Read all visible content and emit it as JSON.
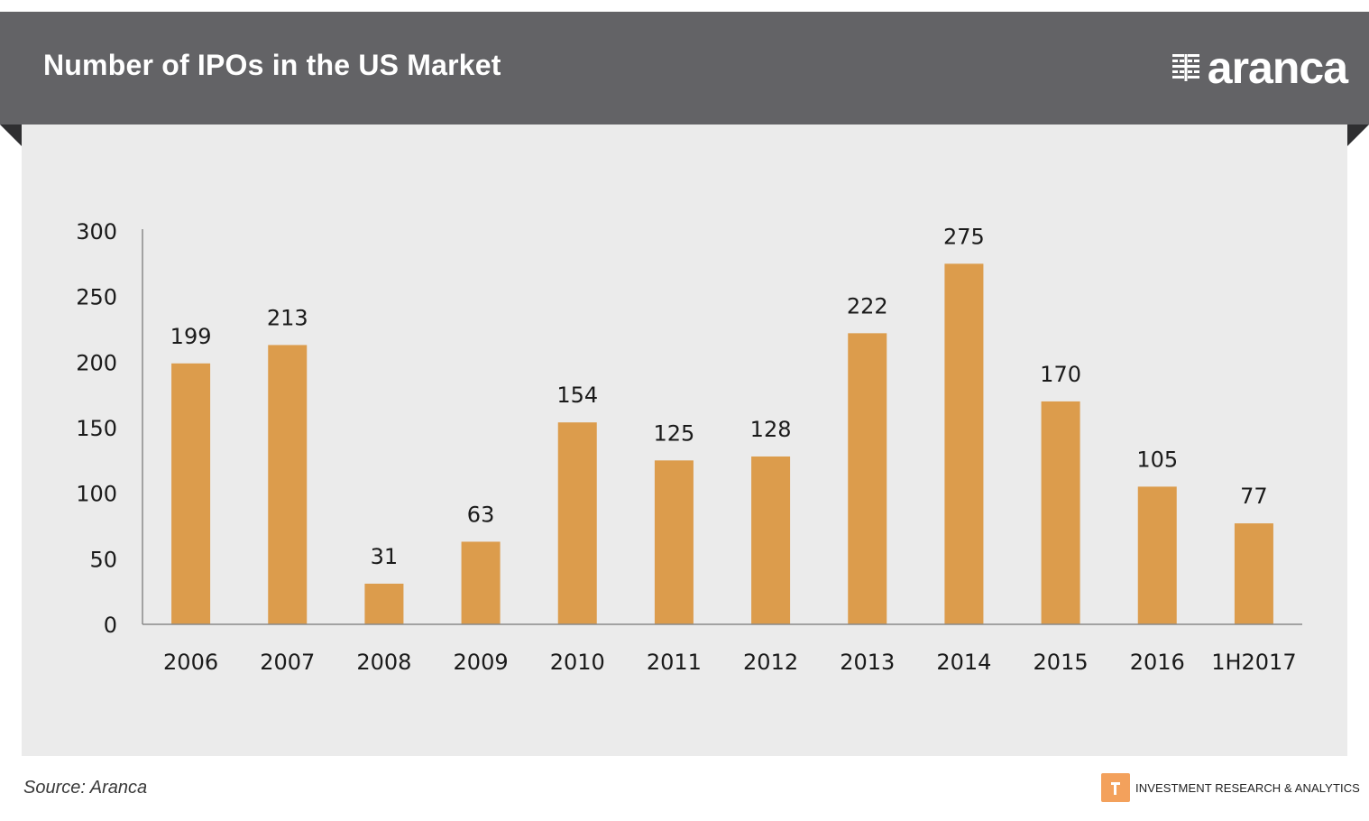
{
  "header": {
    "title": "Number of IPOs in the US Market",
    "logo_text": "aranca"
  },
  "footer": {
    "source": "Source: Aranca",
    "tagline": "INVESTMENT RESEARCH & ANALYTICS"
  },
  "colors": {
    "header_bg": "#636366",
    "panel_bg": "#ebebeb",
    "bar": "#dc9c4c",
    "brand_orange": "#f3a15c"
  },
  "chart_data": {
    "type": "bar",
    "title": "Number of IPOs in the US Market",
    "categories": [
      "2006",
      "2007",
      "2008",
      "2009",
      "2010",
      "2011",
      "2012",
      "2013",
      "2014",
      "2015",
      "2016",
      "1H2017"
    ],
    "values": [
      199,
      213,
      31,
      63,
      154,
      125,
      128,
      222,
      275,
      170,
      105,
      77
    ],
    "ylim": [
      0,
      300
    ],
    "yticks": [
      0,
      50,
      100,
      150,
      200,
      250,
      300
    ],
    "grid": false,
    "data_labels": true,
    "legend": "none"
  }
}
